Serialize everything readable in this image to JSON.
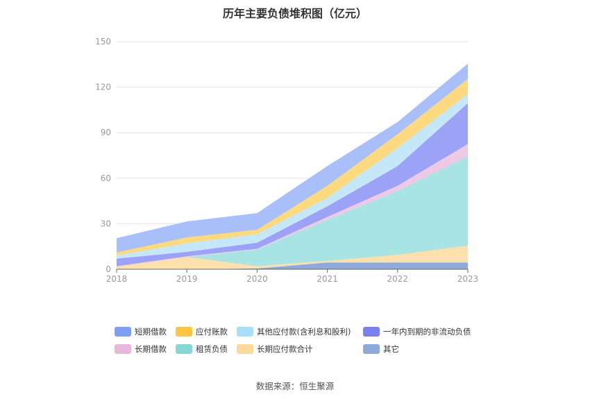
{
  "chart_data": {
    "type": "area",
    "stacked": true,
    "title": "历年主要负债堆积图（亿元）",
    "categories": [
      "2018",
      "2019",
      "2020",
      "2021",
      "2022",
      "2023"
    ],
    "ylim": [
      0,
      150
    ],
    "yticks": [
      "0",
      "30",
      "60",
      "90",
      "120",
      "150"
    ],
    "grid": true,
    "legend_position": "bottom",
    "series": [
      {
        "name": "其它",
        "color": "#8eaad8",
        "values": [
          0,
          0,
          0.5,
          4.5,
          4.5,
          4.5
        ]
      },
      {
        "name": "长期应付款合计",
        "color": "#fce0ae",
        "values": [
          1.5,
          8,
          1.5,
          1,
          5,
          11
        ]
      },
      {
        "name": "租赁负债",
        "color": "#a9e4e4",
        "values": [
          0,
          0,
          11,
          27,
          42,
          59
        ]
      },
      {
        "name": "长期借款",
        "color": "#edc9e5",
        "values": [
          0.5,
          0.5,
          0.5,
          2,
          3.5,
          8
        ]
      },
      {
        "name": "一年内到期的非流动负债",
        "color": "#9ca3f6",
        "values": [
          5,
          3,
          4,
          7,
          13,
          27
        ]
      },
      {
        "name": "其他应付款(含利息和股利)",
        "color": "#c5e8f9",
        "values": [
          2,
          5.5,
          5.5,
          5.5,
          12,
          6
        ]
      },
      {
        "name": "应付账款",
        "color": "#fdd97f",
        "values": [
          2,
          4,
          3,
          8,
          9,
          10
        ]
      },
      {
        "name": "短期借款",
        "color": "#a9bff9",
        "values": [
          9.5,
          10.5,
          11,
          13,
          8,
          10
        ]
      }
    ]
  },
  "legend": {
    "items": [
      {
        "label": "短期借款",
        "color": "#7f9ff5"
      },
      {
        "label": "应付账款",
        "color": "#fdc43f"
      },
      {
        "label": "其他应付款(含利息和股利)",
        "color": "#a8dff8"
      },
      {
        "label": "一年内到期的非流动负债",
        "color": "#7a7ff1"
      },
      {
        "label": "长期借款",
        "color": "#e8b8d9"
      },
      {
        "label": "租赁负债",
        "color": "#85d8d6"
      },
      {
        "label": "长期应付款合计",
        "color": "#fcd89a"
      },
      {
        "label": "其它",
        "color": "#8eaad8"
      }
    ]
  },
  "footer": {
    "source": "数据来源：恒生聚源"
  }
}
